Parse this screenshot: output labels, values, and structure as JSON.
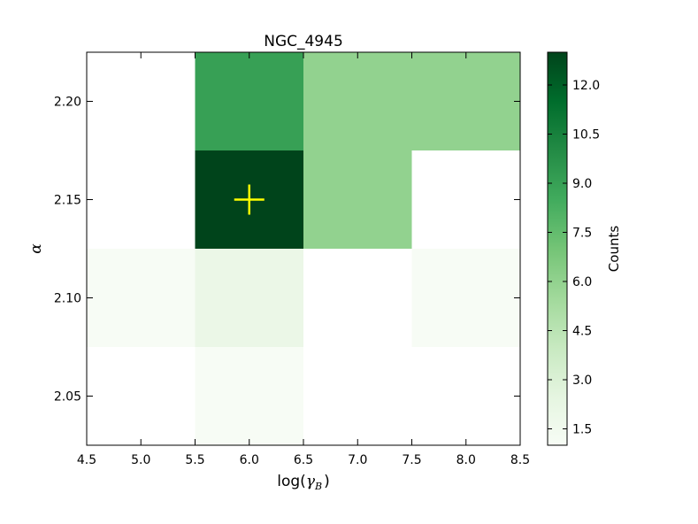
{
  "chart_data": {
    "type": "heatmap",
    "title": "NGC_4945",
    "xlabel_main": "log(",
    "xlabel_symbol": "γ",
    "xlabel_sub": "B",
    "xlabel_close": ")",
    "ylabel": "α",
    "colorbar_label": "Counts",
    "colormap": "Greens",
    "colors": {
      "low": "#f7fcf5",
      "high": "#00441b",
      "marker": "#ffff00",
      "axis": "#000000"
    },
    "xlim": [
      4.5,
      8.5
    ],
    "ylim": [
      2.025,
      2.225
    ],
    "x_ticks": [
      "4.5",
      "5.0",
      "5.5",
      "6.0",
      "6.5",
      "7.0",
      "7.5",
      "8.0",
      "8.5"
    ],
    "y_ticks": [
      "2.05",
      "2.10",
      "2.15",
      "2.20"
    ],
    "x_bins": [
      5.0,
      6.0,
      7.0,
      8.0
    ],
    "y_bins": [
      2.05,
      2.1,
      2.15,
      2.2
    ],
    "counts": [
      [
        0,
        1,
        0,
        0
      ],
      [
        1,
        2,
        0,
        1
      ],
      [
        0,
        13,
        6,
        0
      ],
      [
        0,
        9,
        6,
        6
      ]
    ],
    "colorbar_range": [
      1,
      13
    ],
    "colorbar_ticks": [
      "1.5",
      "3.0",
      "4.5",
      "6.0",
      "7.5",
      "9.0",
      "10.5",
      "12.0"
    ],
    "marker": {
      "x": 6.0,
      "y": 2.15,
      "symbol": "+"
    }
  }
}
